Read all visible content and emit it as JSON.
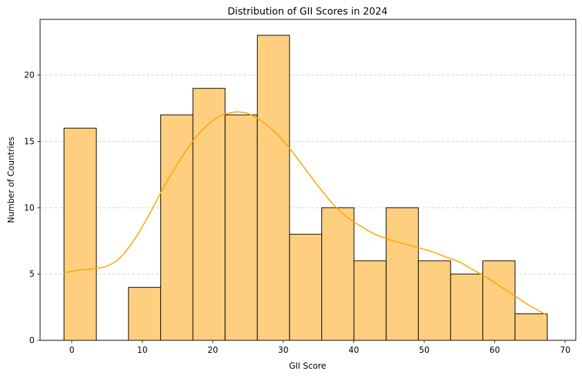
{
  "chart_data": {
    "type": "bar",
    "subtype": "histogram-with-kde",
    "title": "Distribution of GII Scores in 2024",
    "xlabel": "GII Score",
    "ylabel": "Number of Countries",
    "xlim": [
      -4.5,
      71.5
    ],
    "ylim": [
      0,
      24.2
    ],
    "xticks": [
      0,
      10,
      20,
      30,
      40,
      50,
      60,
      70
    ],
    "yticks": [
      0,
      5,
      10,
      15,
      20
    ],
    "grid": {
      "axis": "y",
      "style": "dashed"
    },
    "bin_edges": [
      -1.1,
      3.47,
      8.04,
      12.61,
      17.18,
      21.75,
      26.32,
      30.89,
      35.46,
      40.03,
      44.6,
      49.17,
      53.74,
      58.31,
      62.88,
      67.45
    ],
    "counts": [
      16,
      0,
      4,
      17,
      19,
      17,
      23,
      8,
      10,
      6,
      10,
      6,
      5,
      6,
      2
    ],
    "kde": {
      "x": [
        -1.1,
        1,
        3,
        5,
        7,
        9,
        11,
        13,
        15,
        17,
        19,
        21,
        23,
        24,
        25,
        27,
        29,
        31,
        33,
        35,
        37,
        39,
        41,
        43,
        45,
        47,
        49,
        51,
        53,
        55,
        57,
        59,
        61,
        63,
        65,
        67.4
      ],
      "y": [
        5.1,
        5.3,
        5.4,
        5.6,
        6.3,
        7.7,
        9.5,
        11.5,
        13.3,
        14.9,
        16.1,
        16.9,
        17.2,
        17.2,
        17.1,
        16.5,
        15.6,
        14.4,
        13.0,
        11.6,
        10.3,
        9.3,
        8.6,
        8.0,
        7.6,
        7.3,
        7.0,
        6.7,
        6.3,
        5.9,
        5.3,
        4.7,
        4.0,
        3.3,
        2.6,
        1.9
      ]
    },
    "colors": {
      "bar_fill": "#fecf7f",
      "bar_edge": "#000000",
      "kde_line": "#ffa500",
      "grid": "#c0c0c0"
    }
  }
}
